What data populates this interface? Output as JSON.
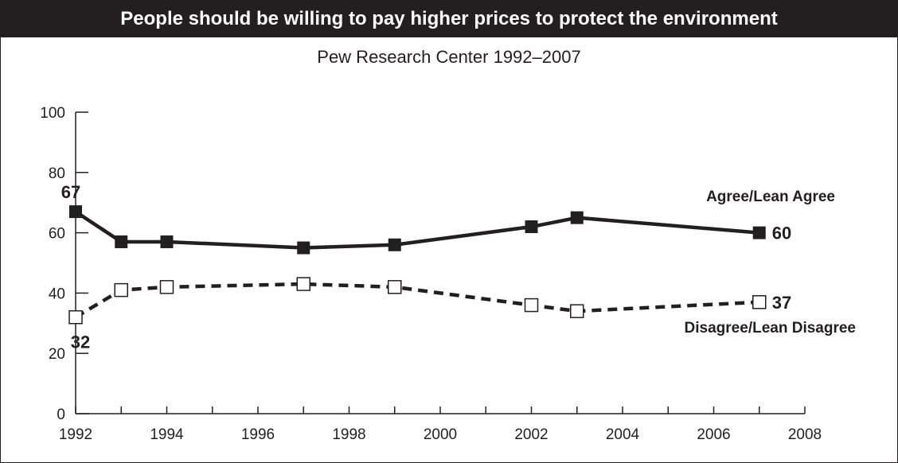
{
  "title": "People should be willing to pay higher prices to protect the environment",
  "subtitle": "Pew Research Center 1992–2007",
  "colors": {
    "ink": "#231f20",
    "background": "#ffffff",
    "title_bar": "#231f20"
  },
  "chart_data": {
    "type": "line",
    "xlim": [
      1992,
      2008
    ],
    "ylim": [
      0,
      100
    ],
    "x_ticks": [
      1992,
      1994,
      1996,
      1998,
      2000,
      2002,
      2004,
      2006,
      2008
    ],
    "y_ticks": [
      0,
      20,
      40,
      60,
      80,
      100
    ],
    "grid": false,
    "series": [
      {
        "name": "Agree/Lean Agree",
        "style": "solid",
        "marker": "filled-square",
        "x": [
          1992,
          1993,
          1994,
          1997,
          1999,
          2002,
          2003,
          2007
        ],
        "values": [
          67,
          57,
          57,
          55,
          56,
          62,
          65,
          60
        ]
      },
      {
        "name": "Disagree/Lean Disagree",
        "style": "dashed",
        "marker": "open-square",
        "x": [
          1992,
          1993,
          1994,
          1997,
          1999,
          2002,
          2003,
          2007
        ],
        "values": [
          32,
          41,
          42,
          43,
          42,
          36,
          34,
          37
        ]
      }
    ],
    "annotations": [
      {
        "series": 0,
        "point": 0,
        "text": "67",
        "pos": "above"
      },
      {
        "series": 0,
        "point": 7,
        "text": "60",
        "pos": "right"
      },
      {
        "series": 1,
        "point": 0,
        "text": "32",
        "pos": "below"
      },
      {
        "series": 1,
        "point": 7,
        "text": "37",
        "pos": "right"
      }
    ]
  }
}
